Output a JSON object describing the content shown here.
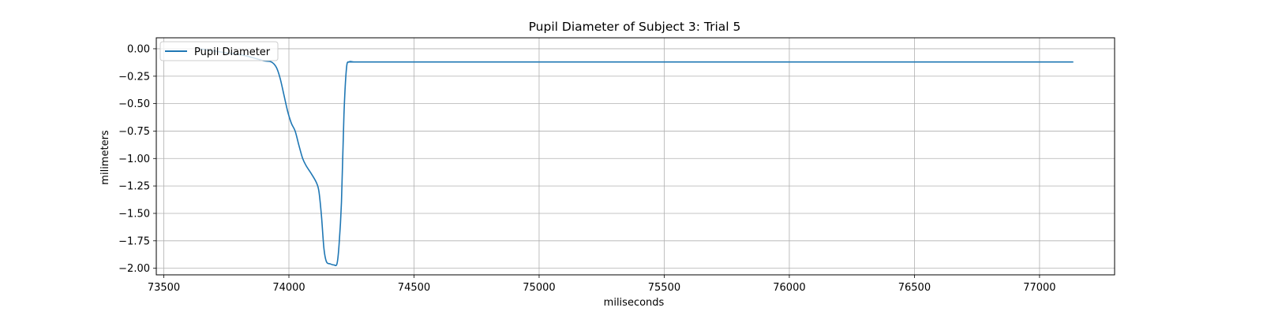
{
  "chart_data": {
    "type": "line",
    "title": "Pupil Diameter of Subject 3: Trial 5",
    "xlabel": "miliseconds",
    "ylabel": "milimeters",
    "xlim": [
      73470,
      77300
    ],
    "ylim": [
      -2.06,
      0.1
    ],
    "xticks": [
      73500,
      74000,
      74500,
      75000,
      75500,
      76000,
      76500,
      77000
    ],
    "yticks": [
      0.0,
      -0.25,
      -0.5,
      -0.75,
      -1.0,
      -1.25,
      -1.5,
      -1.75,
      -2.0
    ],
    "ytick_labels": [
      "0.00",
      "−0.25",
      "−0.50",
      "−0.75",
      "−1.00",
      "−1.25",
      "−1.50",
      "−1.75",
      "−2.00"
    ],
    "grid": true,
    "legend_position": "upper left",
    "colors": {
      "series": "#1f77b4",
      "grid": "#b0b0b0"
    },
    "series": [
      {
        "name": "Pupil Diameter",
        "x": [
          73640,
          73700,
          73760,
          73820,
          73870,
          73900,
          73930,
          73950,
          73965,
          73980,
          73995,
          74010,
          74025,
          74040,
          74055,
          74070,
          74090,
          74110,
          74120,
          74130,
          74140,
          74150,
          74165,
          74180,
          74192,
          74200,
          74210,
          74220,
          74230,
          74240,
          74260,
          74300,
          75000,
          76000,
          77000,
          77135
        ],
        "y": [
          0.0,
          -0.02,
          -0.04,
          -0.06,
          -0.09,
          -0.11,
          -0.12,
          -0.17,
          -0.27,
          -0.42,
          -0.57,
          -0.68,
          -0.75,
          -0.88,
          -1.0,
          -1.07,
          -1.14,
          -1.22,
          -1.3,
          -1.52,
          -1.82,
          -1.94,
          -1.96,
          -1.97,
          -1.96,
          -1.8,
          -1.4,
          -0.6,
          -0.18,
          -0.12,
          -0.12,
          -0.12,
          -0.12,
          -0.12,
          -0.12,
          -0.12
        ]
      }
    ]
  }
}
